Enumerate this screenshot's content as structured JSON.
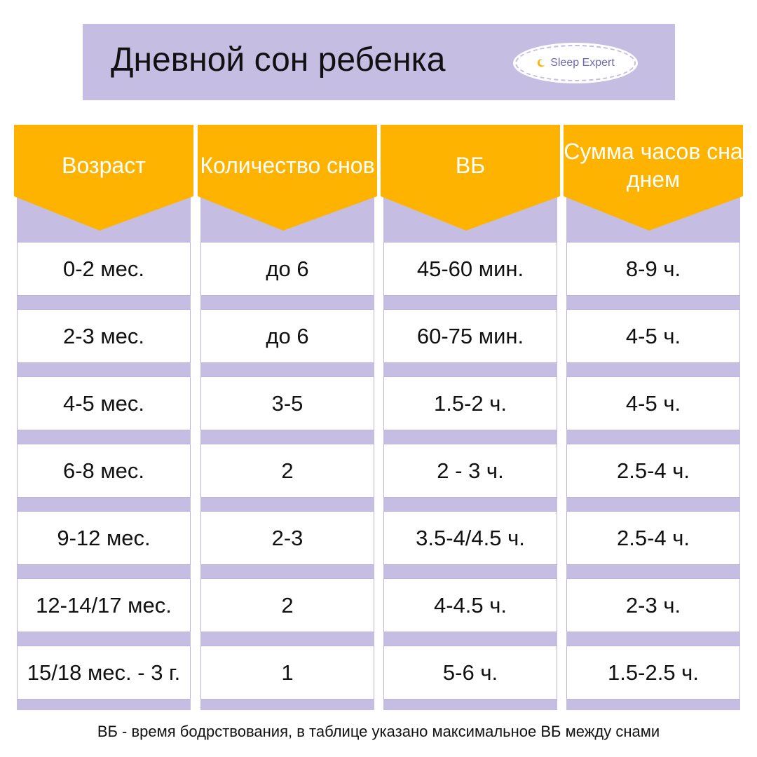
{
  "title": "Дневной сон ребенка",
  "logo": {
    "text": "Sleep Expert",
    "icon": "moon-icon"
  },
  "colors": {
    "banner": "#c6bde2",
    "header": "#fdb300",
    "logo_text": "#6f67b0",
    "moon": "#fdb300"
  },
  "table": {
    "columns": [
      {
        "header": "Возраст"
      },
      {
        "header": "Количество снов"
      },
      {
        "header": "ВБ"
      },
      {
        "header": "Сумма часов сна днем"
      }
    ],
    "rows": [
      [
        "0-2 мес.",
        "до 6",
        "45-60 мин.",
        "8-9 ч."
      ],
      [
        "2-3 мес.",
        "до 6",
        "60-75 мин.",
        "4-5 ч."
      ],
      [
        "4-5 мес.",
        "3-5",
        "1.5-2 ч.",
        "4-5 ч."
      ],
      [
        "6-8 мес.",
        "2",
        "2 - 3 ч.",
        "2.5-4 ч."
      ],
      [
        "9-12 мес.",
        "2-3",
        "3.5-4/4.5 ч.",
        "2.5-4 ч."
      ],
      [
        "12-14/17 мес.",
        "2",
        "4-4.5 ч.",
        "2-3 ч."
      ],
      [
        "15/18 мес. - 3 г.",
        "1",
        "5-6 ч.",
        "1.5-2.5 ч."
      ]
    ]
  },
  "footnote": "ВБ - время бодрствования, в таблице указано максимальное ВБ между снами"
}
